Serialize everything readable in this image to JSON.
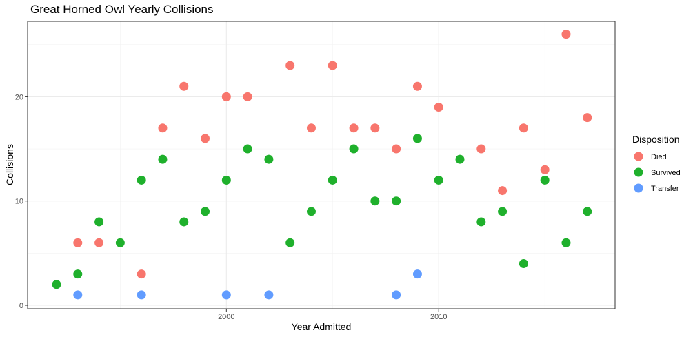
{
  "chart_data": {
    "type": "scatter",
    "title": "Great Horned Owl Yearly Collisions",
    "xlabel": "Year Admitted",
    "ylabel": "Collisions",
    "xlim": [
      1991,
      2018
    ],
    "ylim": [
      0,
      27
    ],
    "x_ticks": [
      2000,
      2010
    ],
    "y_ticks": [
      0,
      10,
      20
    ],
    "grid": true,
    "legend": {
      "title": "Disposition",
      "placement": "right"
    },
    "series": [
      {
        "name": "Died",
        "color": "#F8766D",
        "x": [
          1993,
          1994,
          1996,
          1997,
          1998,
          1999,
          2000,
          2001,
          2003,
          2004,
          2005,
          2006,
          2007,
          2008,
          2009,
          2010,
          2012,
          2013,
          2014,
          2015,
          2016,
          2017
        ],
        "y": [
          6,
          6,
          3,
          17,
          21,
          16,
          20,
          20,
          23,
          17,
          23,
          17,
          17,
          15,
          21,
          19,
          15,
          11,
          17,
          13,
          26,
          18
        ]
      },
      {
        "name": "Survived",
        "color": "#1FB02C",
        "x": [
          1992,
          1993,
          1994,
          1995,
          1996,
          1997,
          1998,
          1999,
          2000,
          2001,
          2002,
          2003,
          2004,
          2005,
          2006,
          2007,
          2008,
          2009,
          2010,
          2011,
          2012,
          2013,
          2014,
          2015,
          2016,
          2017
        ],
        "y": [
          2,
          3,
          8,
          6,
          12,
          14,
          8,
          9,
          12,
          15,
          14,
          6,
          9,
          12,
          15,
          10,
          10,
          16,
          12,
          14,
          8,
          9,
          4,
          12,
          6,
          9
        ]
      },
      {
        "name": "Transfer",
        "color": "#619CFF",
        "x": [
          1993,
          1996,
          2000,
          2002,
          2008,
          2009
        ],
        "y": [
          1,
          1,
          1,
          1,
          1,
          3
        ]
      }
    ]
  }
}
